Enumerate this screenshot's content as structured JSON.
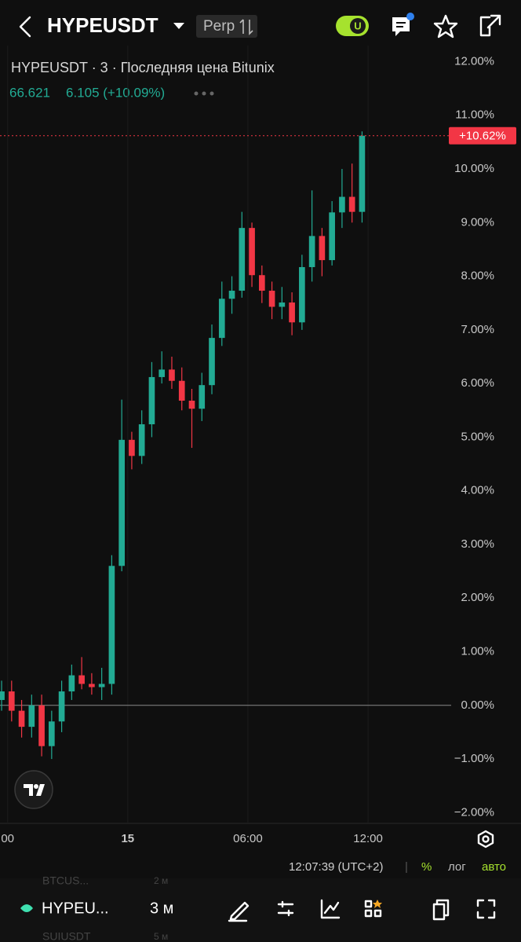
{
  "header": {
    "symbol": "HYPEUSDT",
    "market": "Perp",
    "toggle": "U"
  },
  "chart_data": {
    "type": "candlestick",
    "title": "HYPEUSDT · 3 · Последняя цена Bitunix",
    "price": "66.621",
    "change": "6.105 (+10.09%)",
    "up_color": "#22ab94",
    "down_color": "#f23645",
    "x": [
      -6.3,
      -5.8,
      -5.3,
      -4.8,
      -4.3,
      -3.8,
      -3.3,
      -2.8,
      -2.3,
      -1.8,
      -1.3,
      -0.8,
      -0.3,
      0.2,
      0.7,
      1.2,
      1.7,
      2.2,
      2.7,
      3.2,
      3.7,
      4.2,
      4.7,
      5.2,
      5.7,
      6.2,
      6.7,
      7.2,
      7.7,
      8.2,
      8.7,
      9.2,
      9.7,
      10.2,
      10.7,
      11.2,
      11.7
    ],
    "open": [
      0.1,
      0.26,
      -0.1,
      -0.4,
      0,
      -0.76,
      -0.3,
      0.26,
      0.56,
      0.4,
      0.34,
      0.4,
      2.6,
      4.95,
      4.65,
      5.24,
      6.12,
      6.26,
      6.05,
      5.68,
      5.53,
      5.97,
      6.85,
      7.58,
      7.73,
      8.9,
      8.02,
      7.73,
      7.43,
      7.51,
      7.14,
      8.17,
      8.75,
      8.3,
      9.19,
      9.48,
      9.2
    ],
    "high": [
      0.46,
      0.46,
      0.1,
      0.2,
      0.2,
      -0.1,
      0.46,
      0.76,
      0.9,
      0.6,
      0.7,
      2.8,
      5.7,
      5.1,
      5.5,
      6.4,
      6.6,
      6.5,
      6.3,
      5.9,
      6.2,
      7.1,
      7.9,
      8.0,
      9.2,
      9.0,
      8.2,
      7.9,
      7.8,
      7.7,
      8.4,
      9.6,
      8.9,
      9.4,
      10.0,
      10.1,
      10.7
    ],
    "low": [
      -0.1,
      -0.3,
      -0.6,
      -0.6,
      -0.95,
      -1.0,
      -0.5,
      0.1,
      0.3,
      0.2,
      0.1,
      0.2,
      2.5,
      4.4,
      4.5,
      5.0,
      6.0,
      5.9,
      5.5,
      4.8,
      5.3,
      5.8,
      6.7,
      7.3,
      7.6,
      7.8,
      7.5,
      7.2,
      7.2,
      6.9,
      7.0,
      7.9,
      8.0,
      8.2,
      8.9,
      9.0,
      9.0
    ],
    "close": [
      0.26,
      -0.1,
      -0.4,
      0,
      -0.76,
      -0.3,
      0.26,
      0.56,
      0.4,
      0.34,
      0.4,
      2.6,
      4.95,
      4.65,
      5.24,
      6.12,
      6.26,
      6.05,
      5.68,
      5.53,
      5.97,
      6.85,
      7.58,
      7.73,
      8.9,
      8.02,
      7.73,
      7.43,
      7.51,
      7.14,
      8.17,
      8.75,
      8.3,
      9.19,
      9.48,
      9.2,
      10.62
    ],
    "baseline": 0,
    "last_value": 10.62,
    "last_label": "+10.62%",
    "xlim": [
      -6.38,
      16.15
    ],
    "xticks": [
      {
        "value": -6,
        "label": "00"
      },
      {
        "value": 0,
        "label": "15"
      },
      {
        "value": 6,
        "label": "06:00"
      },
      {
        "value": 12,
        "label": "12:00"
      }
    ],
    "ylim": [
      -2.2,
      12.3
    ],
    "yticks": [
      {
        "value": 12,
        "label": "12.00%"
      },
      {
        "value": 11,
        "label": "11.00%"
      },
      {
        "value": 10,
        "label": "10.00%"
      },
      {
        "value": 9,
        "label": "9.00%"
      },
      {
        "value": 8,
        "label": "8.00%"
      },
      {
        "value": 7,
        "label": "7.00%"
      },
      {
        "value": 6,
        "label": "6.00%"
      },
      {
        "value": 5,
        "label": "5.00%"
      },
      {
        "value": 4,
        "label": "4.00%"
      },
      {
        "value": 3,
        "label": "3.00%"
      },
      {
        "value": 2,
        "label": "2.00%"
      },
      {
        "value": 1,
        "label": "1.00%"
      },
      {
        "value": 0,
        "label": "0.00%"
      },
      {
        "value": -1,
        "label": "−1.00%"
      },
      {
        "value": -2,
        "label": "−2.00%"
      }
    ]
  },
  "footer": {
    "time": "12:07:39 (UTC+2)",
    "separator": "|",
    "percent": "%",
    "log": "лог",
    "auto": "авто"
  },
  "bottom": {
    "symbol": "HYPEU...",
    "interval": "3 м",
    "ghost": [
      "BTCUS...",
      "2 м",
      "SUIUSDT",
      "5 м"
    ]
  }
}
